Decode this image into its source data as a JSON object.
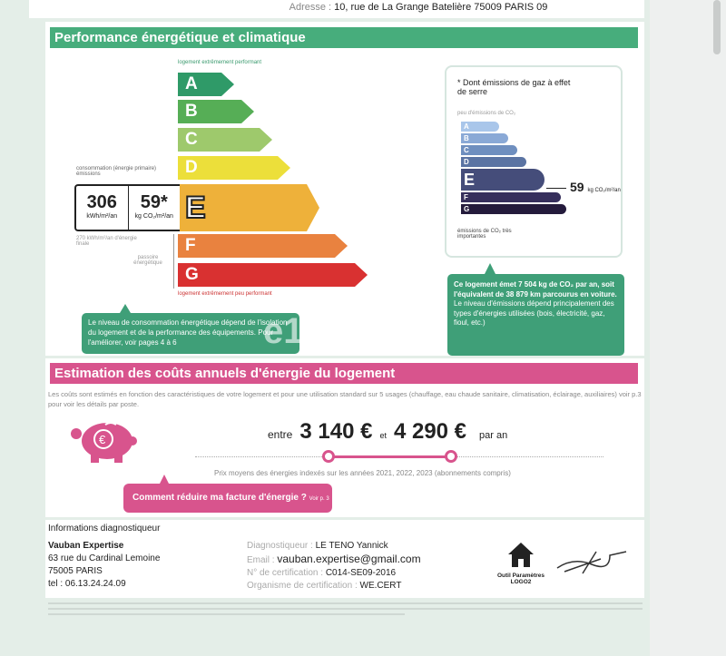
{
  "address": {
    "label": "Adresse :",
    "value": "10, rue de La Grange Batelière 75009 PARIS 09"
  },
  "performance": {
    "title": "Performance énergétique et climatique",
    "top_label": "logement extrêmement performant",
    "bottom_label": "logement extrêmement peu performant",
    "classes": [
      "A",
      "B",
      "C",
      "D",
      "E",
      "F",
      "G"
    ],
    "current_class": "E",
    "colors": {
      "A": "#2f9a68",
      "B": "#56ae56",
      "C": "#9ec96c",
      "D": "#ecdf3a",
      "E": "#eeb13a",
      "F": "#e9823f",
      "G": "#d93131"
    },
    "consumption_label": "consommation (énergie primaire)",
    "emissions_label": "émissions",
    "consumption_value": "306",
    "consumption_unit": "kWh/m²/an",
    "emissions_value": "59*",
    "emissions_unit": "kg CO₂/m²/an",
    "final_energy": "270 kWh/m²/an d'énergie finale",
    "passoire": "passoire énergétique",
    "callout": "Le niveau de consommation énergétique dépend de l'isolation du logement et de la performance des équipements. Pour l'améliorer, voir pages 4 à 6",
    "watermark": "e1"
  },
  "ges": {
    "title": "* Dont émissions de gaz à effet de serre",
    "top_label": "peu d'émissions de CO₂",
    "bottom_label": "émissions de CO₂ très importantes",
    "value": "59",
    "unit": "kg CO₂/m²/an",
    "colors": [
      "#a9c6ea",
      "#8aa9d6",
      "#6f8fbf",
      "#5b74a3",
      "#454d7a",
      "#362f5c",
      "#241b3c"
    ],
    "callout_bold": "Ce logement émet 7 504 kg de CO₂ par an, soit l'équivalent de 38 879 km parcourus en voiture.",
    "callout_text": "Le niveau d'émissions dépend principalement des types d'énergies utilisées (bois, électricité, gaz, fioul, etc.)"
  },
  "costs": {
    "title": "Estimation des coûts annuels d'énergie du logement",
    "description": "Les coûts sont estimés en fonction des caractéristiques de votre logement et pour une utilisation standard sur 5 usages (chauffage, eau chaude sanitaire, climatisation, éclairage, auxiliaires) voir p.3 pour voir les détails par poste.",
    "between": "entre",
    "min": "3 140 €",
    "and": "et",
    "max": "4 290 €",
    "per_year": "par an",
    "prices_note": "Prix moyens des énergies indexés sur les années 2021, 2022, 2023 (abonnements compris)",
    "reduce_link": "Comment réduire ma facture d'énergie ?",
    "reduce_page": "Voir p. 3"
  },
  "diagnostician": {
    "heading": "Informations diagnostiqueur",
    "company": "Vauban Expertise",
    "street": "63 rue du Cardinal Lemoine",
    "city": "75005 PARIS",
    "tel": "tel : 06.13.24.24.09",
    "fields": [
      {
        "label": "Diagnostiqueur :",
        "value": "LE TENO Yannick"
      },
      {
        "label": "Email :",
        "value": "vauban.expertise@gmail.com"
      },
      {
        "label": "N° de certification :",
        "value": "C014-SE09-2016"
      },
      {
        "label": "Organisme de certification :",
        "value": "WE.CERT"
      }
    ],
    "logo_text": "Outil Paramètres LOGO2"
  }
}
